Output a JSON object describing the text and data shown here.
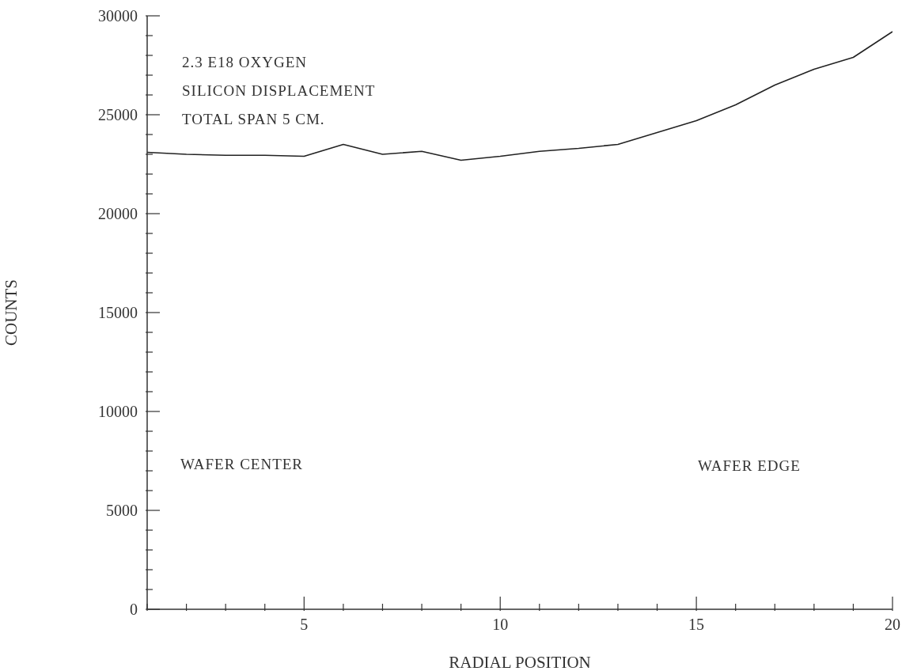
{
  "chart_data": {
    "type": "line",
    "xlabel": "RADIAL POSITION",
    "ylabel": "COUNTS",
    "annotations": [
      "2.3 E18 OXYGEN",
      "SILICON DISPLACEMENT",
      "TOTAL SPAN 5 CM.",
      "WAFER CENTER",
      "WAFER EDGE"
    ],
    "x": [
      1,
      2,
      3,
      4,
      5,
      6,
      7,
      8,
      9,
      10,
      11,
      12,
      13,
      14,
      15,
      16,
      17,
      18,
      19,
      20
    ],
    "series": [
      {
        "color": "#222222",
        "values": [
          23100,
          23000,
          22950,
          22950,
          22900,
          23500,
          23000,
          23150,
          22700,
          22900,
          23150,
          23300,
          23500,
          24100,
          24700,
          25500,
          26500,
          27300,
          27900,
          29200
        ]
      }
    ],
    "xlim": [
      1,
      20
    ],
    "xticks": [
      {
        "value": 1,
        "label": null
      },
      {
        "value": 2,
        "label": null
      },
      {
        "value": 3,
        "label": null
      },
      {
        "value": 4,
        "label": null
      },
      5,
      {
        "value": 6,
        "label": null
      },
      {
        "value": 7,
        "label": null
      },
      {
        "value": 8,
        "label": null
      },
      {
        "value": 9,
        "label": null
      },
      10,
      {
        "value": 11,
        "label": null
      },
      {
        "value": 12,
        "label": null
      },
      {
        "value": 13,
        "label": null
      },
      {
        "value": 14,
        "label": null
      },
      15,
      {
        "value": 16,
        "label": null
      },
      {
        "value": 17,
        "label": null
      },
      {
        "value": 18,
        "label": null
      },
      {
        "value": 19,
        "label": null
      },
      20
    ],
    "ylim": [
      0,
      30000
    ],
    "yticks": [
      0,
      {
        "value": 1000,
        "label": null
      },
      {
        "value": 2000,
        "label": null
      },
      {
        "value": 3000,
        "label": null
      },
      {
        "value": 4000,
        "label": null
      },
      5000,
      {
        "value": 6000,
        "label": null
      },
      {
        "value": 7000,
        "label": null
      },
      {
        "value": 8000,
        "label": null
      },
      {
        "value": 9000,
        "label": null
      },
      10000,
      {
        "value": 11000,
        "label": null
      },
      {
        "value": 12000,
        "label": null
      },
      {
        "value": 13000,
        "label": null
      },
      {
        "value": 14000,
        "label": null
      },
      15000,
      {
        "value": 16000,
        "label": null
      },
      {
        "value": 17000,
        "label": null
      },
      {
        "value": 18000,
        "label": null
      },
      {
        "value": 19000,
        "label": null
      },
      20000,
      {
        "value": 21000,
        "label": null
      },
      {
        "value": 22000,
        "label": null
      },
      {
        "value": 23000,
        "label": null
      },
      {
        "value": 24000,
        "label": null
      },
      25000,
      {
        "value": 26000,
        "label": null
      },
      {
        "value": 27000,
        "label": null
      },
      {
        "value": 28000,
        "label": null
      },
      {
        "value": 29000,
        "label": null
      },
      30000
    ],
    "grid": false,
    "legend": false,
    "marker": "none",
    "line_style": "solid"
  }
}
